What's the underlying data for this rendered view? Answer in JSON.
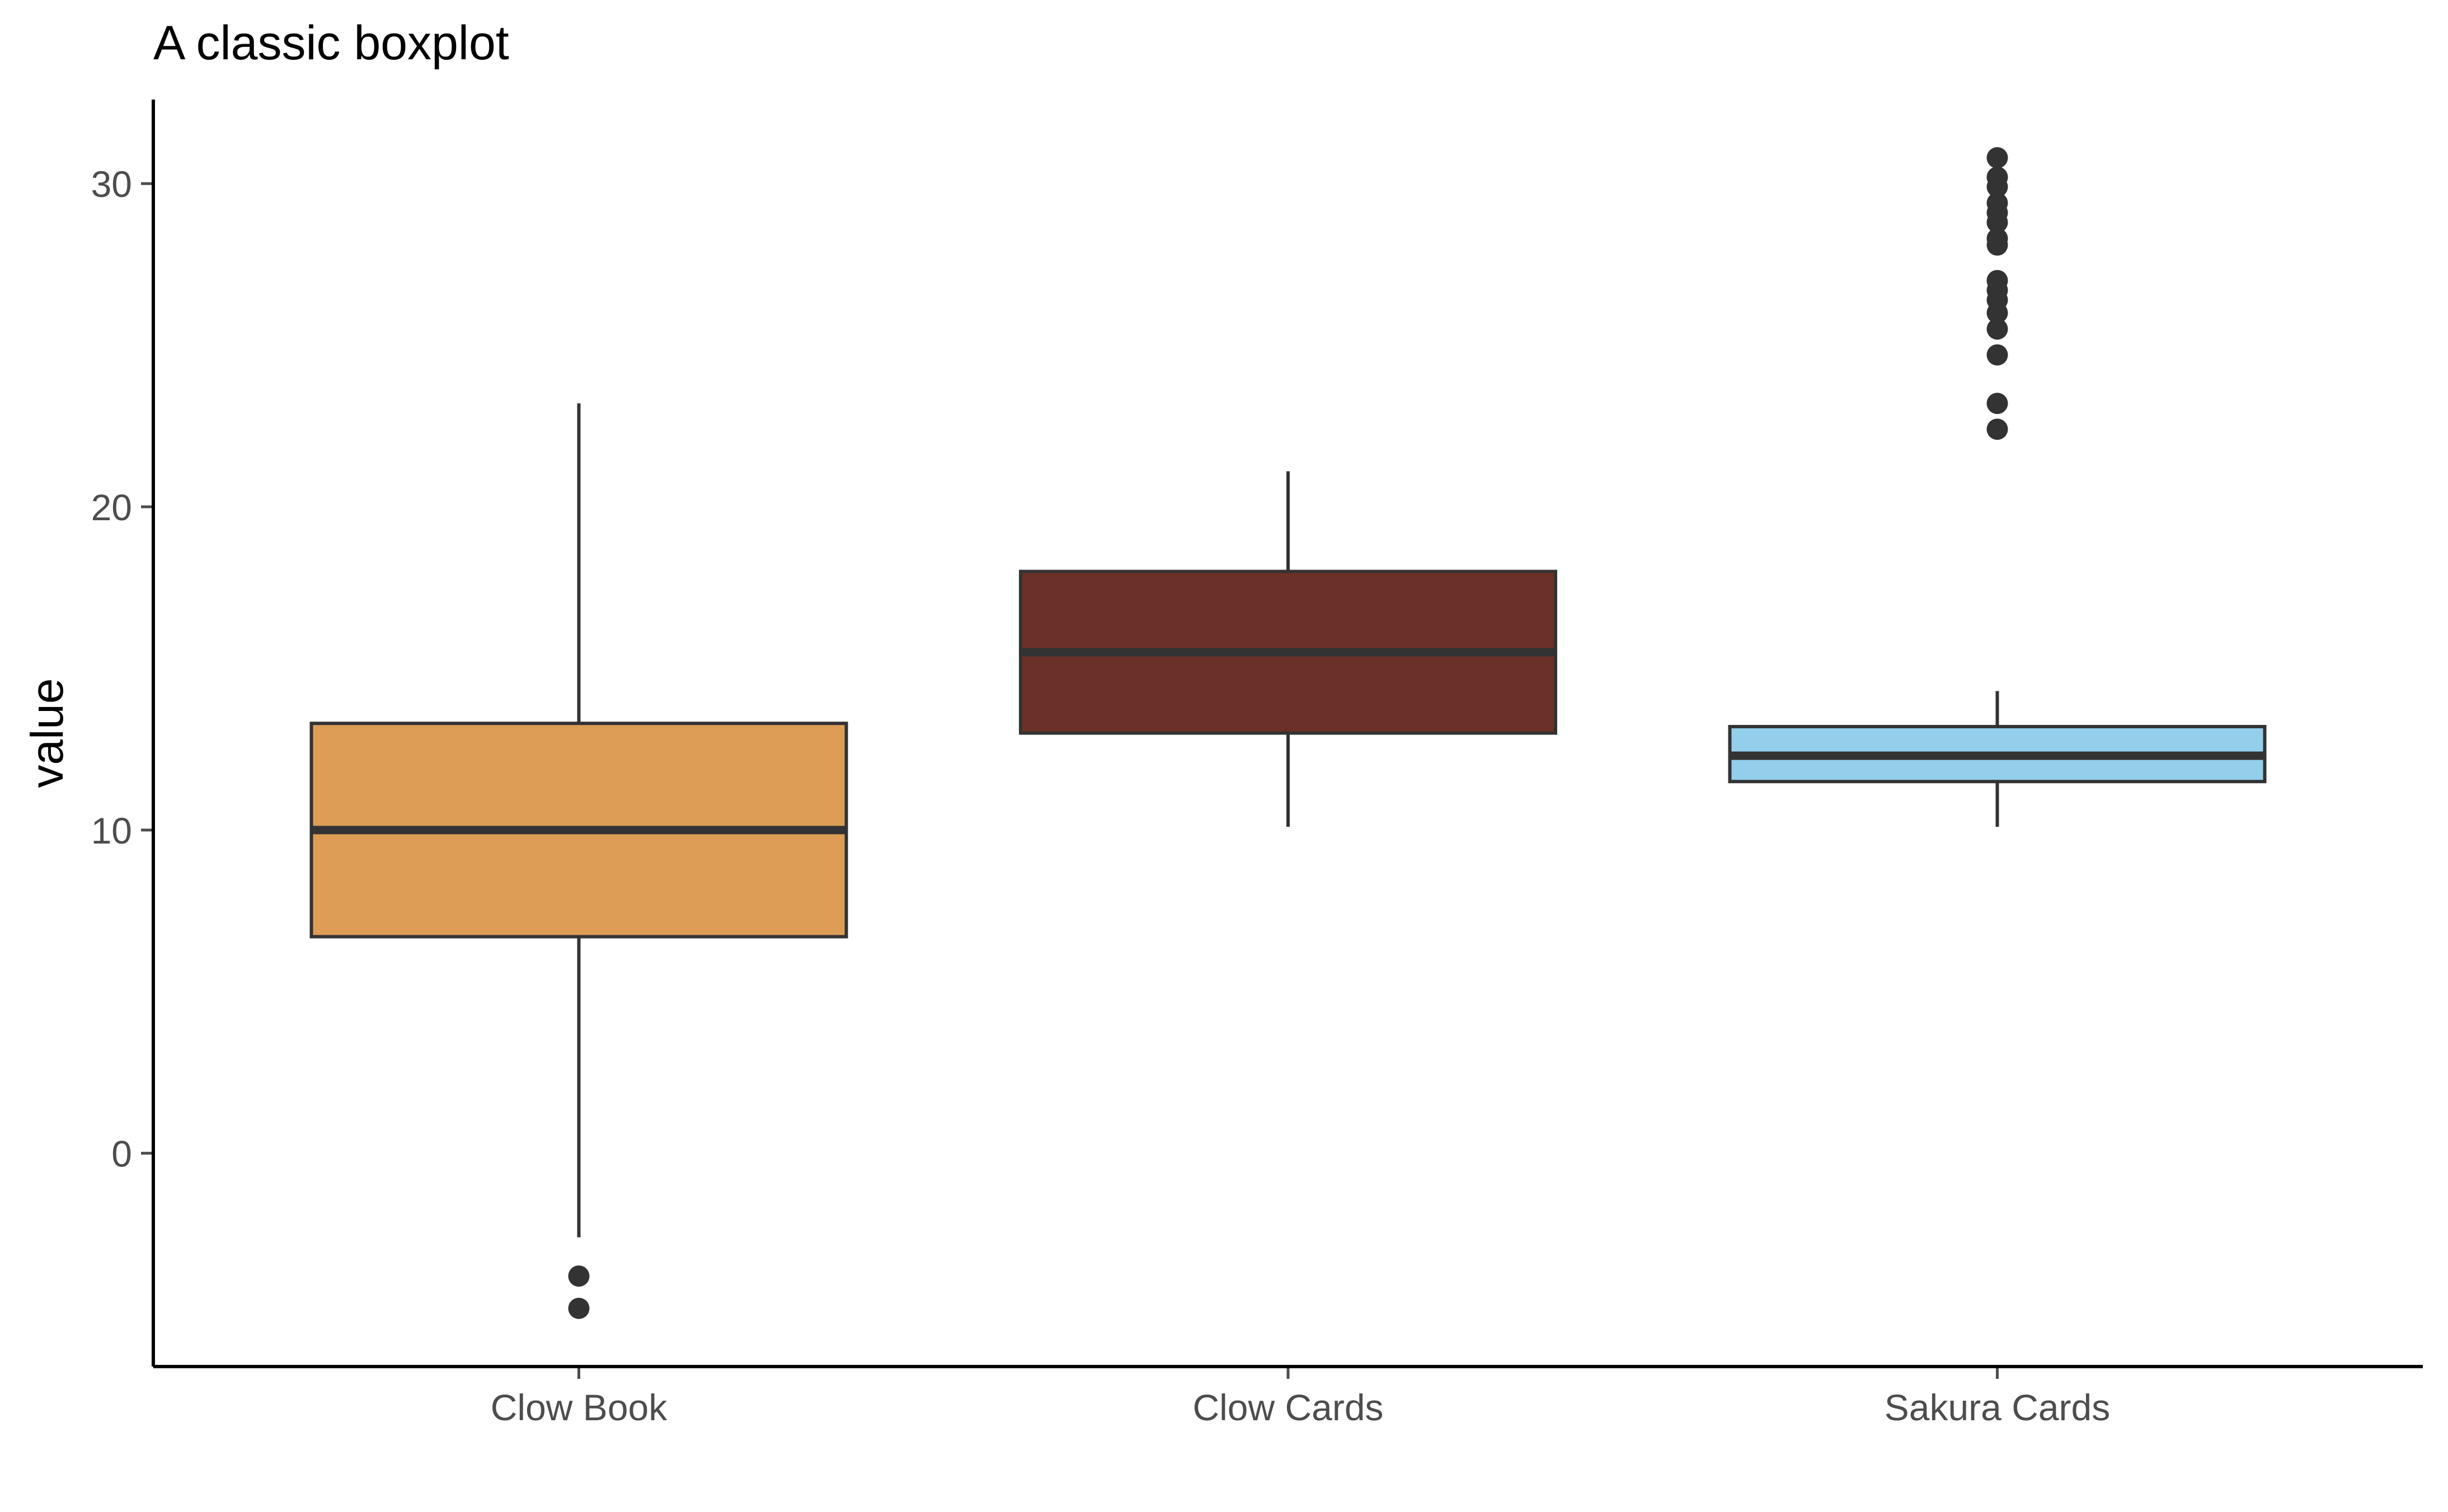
{
  "chart_data": {
    "type": "boxplot",
    "title": "A classic boxplot",
    "xlabel": "",
    "ylabel": "value",
    "ylim": [
      -6.6,
      32.6
    ],
    "yticks": [
      0,
      10,
      20,
      30
    ],
    "grid": false,
    "legend": "none",
    "categories": [
      "Clow Book",
      "Clow Cards",
      "Sakura Cards"
    ],
    "boxes": [
      {
        "category": "Clow Book",
        "color": "#DD9D57",
        "whisker_low": -2.6,
        "q1": 6.7,
        "median": 10.0,
        "q3": 13.3,
        "whisker_high": 23.2,
        "outliers": [
          -3.8,
          -4.8
        ]
      },
      {
        "category": "Clow Cards",
        "color": "#6B3027",
        "whisker_low": 10.1,
        "q1": 13.0,
        "median": 15.5,
        "q3": 18.0,
        "whisker_high": 21.1
      },
      {
        "category": "Sakura Cards",
        "color": "#93CFEB",
        "whisker_low": 10.1,
        "q1": 11.5,
        "median": 12.3,
        "q3": 13.2,
        "whisker_high": 14.3,
        "outliers": [
          22.4,
          23.2,
          24.7,
          25.5,
          26.0,
          26.4,
          26.7,
          27.0,
          28.1,
          28.3,
          28.8,
          29.1,
          29.4,
          29.9,
          30.2,
          30.8
        ]
      }
    ]
  },
  "colors": {
    "axis": "#000000",
    "outline": "#333333",
    "tick_label": "#4D4D4D"
  }
}
